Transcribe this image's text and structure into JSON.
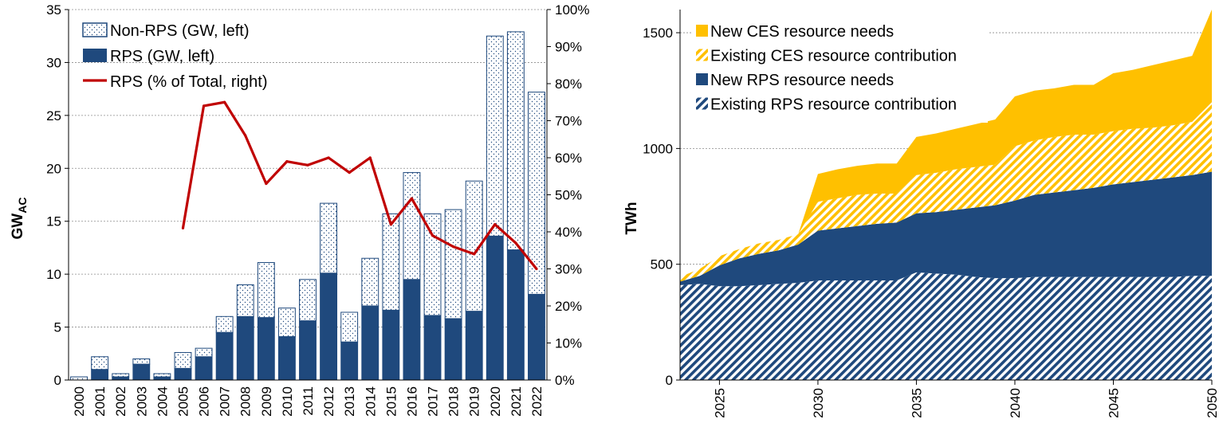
{
  "chart_data": [
    {
      "type": "bar",
      "stacked": true,
      "categories": [
        "2000",
        "2001",
        "2002",
        "2003",
        "2004",
        "2005",
        "2006",
        "2007",
        "2008",
        "2009",
        "2010",
        "2011",
        "2012",
        "2013",
        "2014",
        "2015",
        "2016",
        "2017",
        "2018",
        "2019",
        "2020",
        "2021",
        "2022"
      ],
      "series": [
        {
          "name": "Non-RPS (GW, left)",
          "kind": "bar",
          "pattern": "dotted",
          "color": "#1f497d",
          "values": [
            0.3,
            1.2,
            0.3,
            0.5,
            0.3,
            1.5,
            0.8,
            1.5,
            3.0,
            5.2,
            2.7,
            3.9,
            6.6,
            2.8,
            4.5,
            9.1,
            10.1,
            9.6,
            10.3,
            12.3,
            18.9,
            20.6,
            19.1
          ]
        },
        {
          "name": "RPS (GW, left)",
          "kind": "bar",
          "pattern": "solid",
          "color": "#1f497d",
          "values": [
            0.0,
            1.0,
            0.3,
            1.5,
            0.3,
            1.1,
            2.2,
            4.5,
            6.0,
            5.9,
            4.1,
            5.6,
            10.1,
            3.6,
            7.0,
            6.6,
            9.5,
            6.1,
            5.8,
            6.5,
            13.6,
            12.3,
            8.1
          ]
        },
        {
          "name": "RPS (% of Total, right)",
          "kind": "line",
          "color": "#c00000",
          "axis": "right",
          "values": [
            null,
            null,
            null,
            null,
            null,
            41,
            74,
            75,
            66,
            53,
            59,
            58,
            60,
            56,
            60,
            42,
            49,
            39,
            36,
            34,
            42,
            37,
            30
          ]
        }
      ],
      "xlabel": "",
      "ylabel": "GW",
      "ylabel_sub": "AC",
      "ylim": [
        0,
        35
      ],
      "yticks": [
        "0",
        "5",
        "10",
        "15",
        "20",
        "25",
        "30",
        "35"
      ],
      "y2lim": [
        0,
        100
      ],
      "y2ticks": [
        "0%",
        "10%",
        "20%",
        "30%",
        "40%",
        "50%",
        "60%",
        "70%",
        "80%",
        "90%",
        "100%"
      ],
      "grid": true,
      "legend": "top-left"
    },
    {
      "type": "area",
      "stacked": true,
      "x": [
        2023,
        2024,
        2025,
        2026,
        2027,
        2028,
        2029,
        2030,
        2031,
        2032,
        2033,
        2034,
        2035,
        2036,
        2037,
        2038,
        2039,
        2040,
        2041,
        2042,
        2043,
        2044,
        2045,
        2046,
        2047,
        2048,
        2049,
        2050
      ],
      "series": [
        {
          "name": "Existing RPS resource contribution",
          "pattern": "hatched",
          "color": "#1f497d",
          "values": [
            410,
            415,
            405,
            405,
            410,
            415,
            420,
            430,
            430,
            430,
            430,
            430,
            465,
            460,
            455,
            445,
            440,
            440,
            445,
            445,
            445,
            445,
            445,
            445,
            445,
            445,
            450,
            450
          ]
        },
        {
          "name": "New RPS resource needs",
          "pattern": "solid",
          "color": "#1f497d",
          "values": [
            15,
            35,
            90,
            120,
            135,
            145,
            165,
            215,
            225,
            235,
            245,
            250,
            255,
            265,
            280,
            300,
            315,
            335,
            355,
            365,
            375,
            385,
            400,
            410,
            420,
            430,
            435,
            450
          ]
        },
        {
          "name": "Existing CES resource contribution",
          "pattern": "hatched",
          "color": "#ffc000",
          "values": [
            20,
            30,
            40,
            40,
            45,
            45,
            45,
            125,
            130,
            135,
            130,
            125,
            165,
            170,
            175,
            175,
            175,
            235,
            235,
            240,
            240,
            230,
            230,
            230,
            225,
            225,
            230,
            300
          ]
        },
        {
          "name": "New CES resource needs",
          "pattern": "solid",
          "color": "#ffc000",
          "values": [
            0,
            0,
            0,
            0,
            0,
            0,
            0,
            120,
            125,
            125,
            130,
            130,
            165,
            170,
            175,
            185,
            195,
            215,
            215,
            210,
            215,
            215,
            250,
            255,
            270,
            280,
            285,
            400
          ]
        }
      ],
      "xticks": [
        "2025",
        "2030",
        "2035",
        "2040",
        "2045",
        "2050"
      ],
      "xlabel": "",
      "ylabel": "TWh",
      "ylim": [
        0,
        1600
      ],
      "yticks": [
        "0",
        "500",
        "1000",
        "1500"
      ],
      "grid": true,
      "legend": "top-left"
    }
  ]
}
